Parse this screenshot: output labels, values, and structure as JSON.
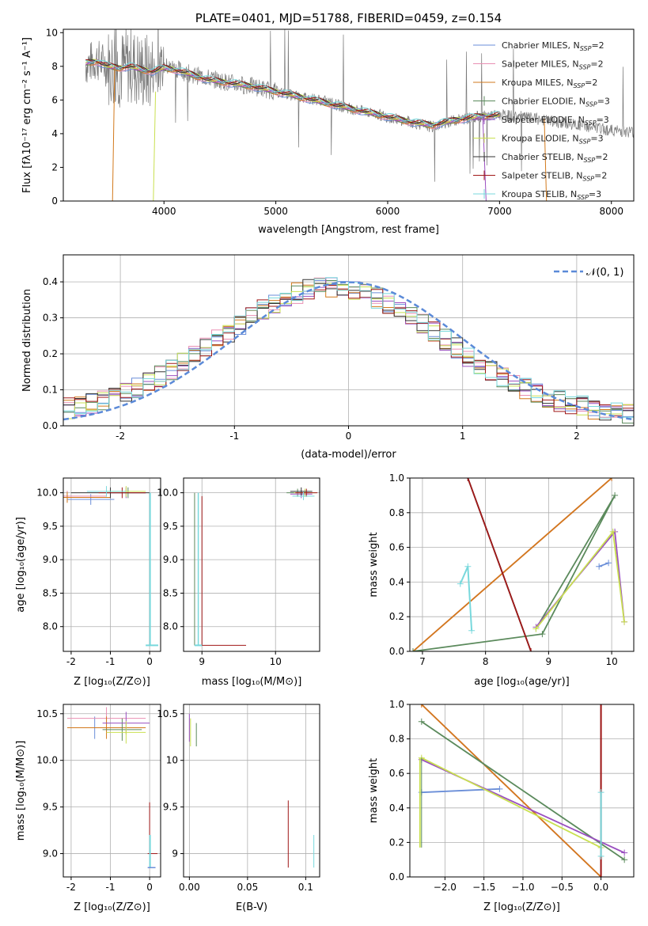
{
  "chart_data": [
    {
      "id": "spectrum",
      "type": "line",
      "title": "PLATE=0401, MJD=51788, FIBERID=0459, z=0.154",
      "xlabel": "wavelength [Angstrom, rest frame]",
      "ylabel": "Flux [fλ10⁻¹⁷ erg cm⁻² s⁻¹ A⁻¹]",
      "xlim": [
        3100,
        8200
      ],
      "ylim": [
        0,
        10.2
      ],
      "xticks": [
        4000,
        5000,
        6000,
        7000,
        8000
      ],
      "yticks": [
        0,
        2,
        4,
        6,
        8,
        10
      ],
      "legend_position": "upper-right",
      "observed": {
        "x": [
          3300,
          3400,
          3500,
          3600,
          3700,
          3800,
          3900,
          4000,
          4100,
          4200,
          4400,
          4600,
          4800,
          5000,
          5200,
          5400,
          5600,
          5800,
          6000,
          6200,
          6400,
          6600,
          6800,
          7000,
          7200,
          7400,
          7600,
          7800,
          8000,
          8200
        ],
        "y": [
          8.1,
          8.4,
          8.0,
          7.8,
          8.1,
          7.7,
          7.6,
          8.0,
          7.9,
          7.6,
          7.3,
          7.0,
          6.8,
          6.5,
          6.2,
          6.0,
          5.6,
          5.3,
          5.0,
          4.7,
          4.4,
          4.8,
          5.0,
          5.1,
          5.0,
          4.8,
          4.6,
          4.4,
          4.2,
          4.1
        ]
      },
      "model": {
        "x": [
          3300,
          3400,
          3500,
          3600,
          3700,
          3800,
          3900,
          4000,
          4100,
          4200,
          4400,
          4600,
          4800,
          5000,
          5200,
          5400,
          5600,
          5800,
          6000,
          6200,
          6400,
          6600,
          6800,
          7000
        ],
        "y": [
          8.2,
          8.3,
          8.0,
          7.9,
          8.0,
          7.8,
          7.7,
          7.9,
          7.8,
          7.6,
          7.2,
          7.0,
          6.8,
          6.5,
          6.2,
          5.9,
          5.6,
          5.3,
          5.0,
          4.7,
          4.5,
          4.8,
          5.0,
          5.1
        ]
      },
      "legend": [
        {
          "name": "Chabrier MILES, N_SSP=2",
          "label": "Chabrier MILES, N",
          "sub": "SSP",
          "tail": "=2",
          "color": "#6a8ed8",
          "marker": ""
        },
        {
          "name": "Salpeter MILES, N_SSP=2",
          "label": "Salpeter MILES, N",
          "sub": "SSP",
          "tail": "=2",
          "color": "#e98fb3",
          "marker": ""
        },
        {
          "name": "Kroupa MILES, N_SSP=2",
          "label": "Kroupa MILES, N",
          "sub": "SSP",
          "tail": "=2",
          "color": "#d2791c",
          "marker": ""
        },
        {
          "name": "Chabrier ELODIE, N_SSP=3",
          "label": "Chabrier ELODIE, N",
          "sub": "SSP",
          "tail": "=3",
          "color": "#5b8a5c",
          "marker": "+"
        },
        {
          "name": "Salpeter ELODIE, N_SSP=3",
          "label": "Salpeter ELODIE, N",
          "sub": "SSP",
          "tail": "=3",
          "color": "#9a4fc0",
          "marker": "+"
        },
        {
          "name": "Kroupa ELODIE, N_SSP=3",
          "label": "Kroupa ELODIE, N",
          "sub": "SSP",
          "tail": "=3",
          "color": "#c9e050",
          "marker": "+"
        },
        {
          "name": "Chabrier STELIB, N_SSP=2",
          "label": "Chabrier STELIB, N",
          "sub": "SSP",
          "tail": "=2",
          "color": "#333333",
          "marker": "+"
        },
        {
          "name": "Salpeter STELIB, N_SSP=2",
          "label": "Salpeter STELIB, N",
          "sub": "SSP",
          "tail": "=2",
          "color": "#a01818",
          "marker": "+"
        },
        {
          "name": "Kroupa STELIB, N_SSP=3",
          "label": "Kroupa STELIB, N",
          "sub": "SSP",
          "tail": "=3",
          "color": "#78d8dc",
          "marker": "+"
        }
      ]
    },
    {
      "id": "residuals",
      "type": "histogram",
      "xlabel": "(data-model)/error",
      "ylabel": "Normed distribution",
      "xlim": [
        -2.5,
        2.5
      ],
      "ylim": [
        0,
        0.475
      ],
      "xticks": [
        -2,
        -1,
        0,
        1,
        2
      ],
      "yticks": [
        0.0,
        0.1,
        0.2,
        0.3,
        0.4
      ],
      "bin_width": 0.1,
      "gaussian_label": "𝒩(0, 1)",
      "gaussian_color": "#5b8ad8",
      "legend_position": "upper-right"
    },
    {
      "id": "age-vs-Z",
      "type": "scatter",
      "xlabel": "Z [log₁₀(Z/Z⊙)]",
      "ylabel": "age  [log₁₀(age/yr)]",
      "xlim": [
        -2.2,
        0.28
      ],
      "ylim": [
        7.63,
        10.22
      ],
      "xticks": [
        -2,
        -1,
        0
      ],
      "yticks": [
        8.0,
        8.5,
        9.0,
        9.5,
        10.0
      ]
    },
    {
      "id": "age-vs-mass",
      "type": "scatter",
      "xlabel": "mass [log₁₀(M/M⊙)]",
      "xlim": [
        8.75,
        10.6
      ],
      "ylim": [
        7.63,
        10.22
      ],
      "xticks": [
        9,
        10
      ],
      "yticks": [
        8.0,
        8.5,
        9.0,
        9.5,
        10.0
      ]
    },
    {
      "id": "weight-vs-age",
      "type": "line",
      "xlabel": "age  [log₁₀(age/yr)]",
      "ylabel": "mass weight",
      "xlim": [
        6.8,
        10.35
      ],
      "ylim": [
        0,
        1
      ],
      "xticks": [
        7,
        8,
        9,
        10
      ],
      "yticks": [
        0.0,
        0.2,
        0.4,
        0.6,
        0.8,
        1.0
      ]
    },
    {
      "id": "mass-vs-Z",
      "type": "scatter",
      "xlabel": "Z [log₁₀(Z/Z⊙)]",
      "ylabel": "mass [log₁₀(M/M⊙)]",
      "xlim": [
        -2.2,
        0.28
      ],
      "ylim": [
        8.75,
        10.6
      ],
      "xticks": [
        -2,
        -1,
        0
      ],
      "yticks": [
        9.0,
        9.5,
        10.0,
        10.5
      ]
    },
    {
      "id": "mass-vs-EBV",
      "type": "scatter",
      "xlabel": "E(B-V)",
      "xlim": [
        -0.005,
        0.112
      ],
      "ylim": [
        8.75,
        10.6
      ],
      "xticks": [
        0.0,
        0.05,
        0.1
      ],
      "yticks": [
        9.0,
        9.5,
        10.0,
        10.5
      ]
    },
    {
      "id": "weight-vs-Z",
      "type": "line",
      "xlabel": "Z [log₁₀(Z/Z⊙)]",
      "ylabel": "mass weight",
      "xlim": [
        -2.45,
        0.42
      ],
      "ylim": [
        0,
        1
      ],
      "xticks": [
        -2.0,
        -1.5,
        -1.0,
        -0.5,
        0.0
      ],
      "yticks": [
        0.0,
        0.2,
        0.4,
        0.6,
        0.8,
        1.0
      ]
    }
  ]
}
